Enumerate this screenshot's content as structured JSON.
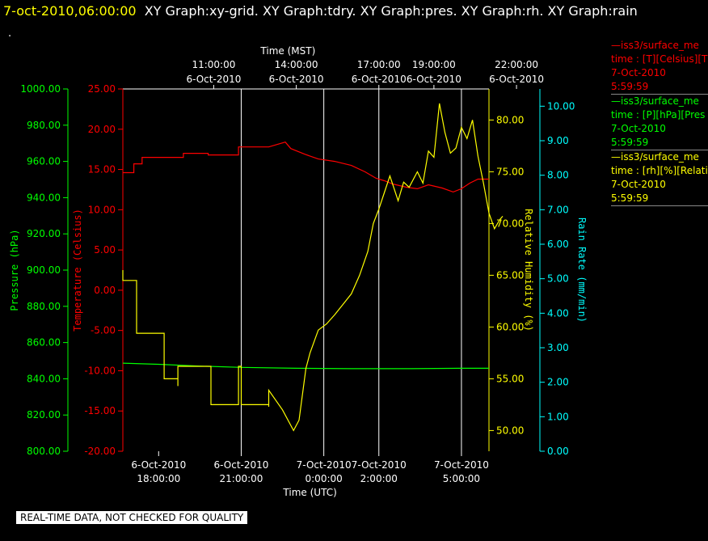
{
  "header": {
    "timestamp": "7-oct-2010,06:00:00",
    "graphs": "XY Graph:xy-grid.  XY Graph:tdry.  XY Graph:pres.  XY Graph:rh.  XY Graph:rain",
    "dot": "."
  },
  "legend": [
    {
      "line1": "—iss3/surface_me",
      "line2": "time : [T][Celsius][T",
      "line3": "7-Oct-2010",
      "line4": "5:59:59",
      "color": "#ff0000"
    },
    {
      "line1": "—iss3/surface_me",
      "line2": "time : [P][hPa][Pres",
      "line3": "7-Oct-2010",
      "line4": "5:59:59",
      "color": "#00ff00"
    },
    {
      "line1": "—iss3/surface_me",
      "line2": "time : [rh][%][Relati",
      "line3": "7-Oct-2010",
      "line4": "5:59:59",
      "color": "#ffff00"
    }
  ],
  "footer": {
    "text": "REAL-TIME DATA, NOT CHECKED FOR QUALITY"
  },
  "chart_data": {
    "type": "line",
    "top_axis": {
      "label": "Time (MST)",
      "ticks": [
        {
          "t": 2,
          "line1": "11:00:00",
          "line2": "6-Oct-2010"
        },
        {
          "t": 5,
          "line1": "14:00:00",
          "line2": "6-Oct-2010"
        },
        {
          "t": 8,
          "line1": "17:00:00",
          "line2": "6-Oct-2010"
        },
        {
          "t": 10,
          "line1": "19:00:00",
          "line2": "6-Oct-2010"
        },
        {
          "t": 13,
          "line1": "22:00:00",
          "line2": "6-Oct-2010"
        }
      ]
    },
    "bottom_axis": {
      "label": "Time (UTC)",
      "ticks": [
        {
          "t": 0,
          "line1": "6-Oct-2010",
          "line2": "18:00:00"
        },
        {
          "t": 3,
          "line1": "6-Oct-2010",
          "line2": "21:00:00"
        },
        {
          "t": 6,
          "line1": "7-Oct-2010",
          "line2": "0:00:00"
        },
        {
          "t": 8,
          "line1": "7-Oct-2010",
          "line2": "2:00:00"
        },
        {
          "t": 11,
          "line1": "7-Oct-2010",
          "line2": "5:00:00"
        }
      ]
    },
    "x_unit": "hours after 6-Oct-2010 18:00 UTC",
    "xlim": [
      -1.3,
      12.0
    ],
    "grid_x": [
      3,
      6,
      8,
      11
    ],
    "axes": [
      {
        "id": "pres",
        "label": "Pressure (hPa)",
        "color": "#00ff00",
        "min": 800,
        "max": 1000,
        "ticks": [
          "800.00",
          "820.00",
          "840.00",
          "860.00",
          "880.00",
          "900.00",
          "920.00",
          "940.00",
          "960.00",
          "980.00",
          "1000.00"
        ]
      },
      {
        "id": "temp",
        "label": "Temperature (Celsius)",
        "color": "#ff0000",
        "min": -20,
        "max": 25,
        "ticks": [
          "-20.00",
          "-15.00",
          "-10.00",
          "-5.00",
          "0.00",
          "5.00",
          "10.00",
          "15.00",
          "20.00",
          "25.00"
        ]
      },
      {
        "id": "rh",
        "label": "Relative Humidity (%)",
        "color": "#ffff00",
        "min": 48,
        "max": 83,
        "ticks": [
          "50.00",
          "55.00",
          "60.00",
          "65.00",
          "70.00",
          "75.00",
          "80.00"
        ]
      },
      {
        "id": "rain",
        "label": "Rain Rate (mm/min)",
        "color": "#00ffff",
        "min": 0,
        "max": 10.5,
        "ticks": [
          "0.00",
          "1.00",
          "2.00",
          "3.00",
          "4.00",
          "5.00",
          "6.00",
          "7.00",
          "8.00",
          "9.00",
          "10.00"
        ]
      }
    ],
    "series": [
      {
        "name": "—iss3/surface_me",
        "axis": "temp",
        "color": "#ff0000",
        "points": [
          [
            -1.3,
            14.6
          ],
          [
            -0.9,
            14.6
          ],
          [
            -0.9,
            15.7
          ],
          [
            -0.6,
            15.7
          ],
          [
            -0.6,
            16.5
          ],
          [
            0.9,
            16.5
          ],
          [
            0.9,
            17.0
          ],
          [
            1.8,
            17.0
          ],
          [
            1.8,
            16.8
          ],
          [
            2.9,
            16.8
          ],
          [
            2.9,
            17.8
          ],
          [
            4.0,
            17.8
          ],
          [
            4.3,
            18.1
          ],
          [
            4.6,
            18.4
          ],
          [
            4.8,
            17.6
          ],
          [
            5.3,
            16.9
          ],
          [
            5.8,
            16.3
          ],
          [
            6.4,
            16.0
          ],
          [
            7.0,
            15.5
          ],
          [
            7.5,
            14.7
          ],
          [
            7.9,
            13.9
          ],
          [
            8.2,
            13.6
          ],
          [
            8.5,
            13.2
          ],
          [
            9.0,
            12.8
          ],
          [
            9.4,
            12.6
          ],
          [
            9.8,
            13.1
          ],
          [
            10.3,
            12.7
          ],
          [
            10.7,
            12.2
          ],
          [
            11.0,
            12.6
          ],
          [
            11.3,
            13.3
          ],
          [
            11.6,
            13.8
          ],
          [
            12.0,
            13.8
          ]
        ]
      },
      {
        "name": "—iss3/surface_me",
        "axis": "pres",
        "color": "#00ff00",
        "points": [
          [
            -1.3,
            848.6
          ],
          [
            0,
            848.0
          ],
          [
            1.5,
            847.0
          ],
          [
            3,
            846.3
          ],
          [
            5,
            845.8
          ],
          [
            7,
            845.6
          ],
          [
            9,
            845.6
          ],
          [
            11,
            845.8
          ],
          [
            12.0,
            845.8
          ]
        ]
      },
      {
        "name": "—iss3/surface_me",
        "axis": "rh",
        "color": "#ffff00",
        "points": [
          [
            -1.3,
            65.5
          ],
          [
            -1.3,
            64.5
          ],
          [
            -0.8,
            64.5
          ],
          [
            -0.8,
            59.4
          ],
          [
            0.2,
            59.4
          ],
          [
            0.2,
            57.5
          ],
          [
            0.2,
            55.0
          ],
          [
            0.7,
            55.0
          ],
          [
            0.7,
            54.3
          ],
          [
            0.7,
            56.2
          ],
          [
            1.9,
            56.2
          ],
          [
            1.9,
            52.5
          ],
          [
            2.9,
            52.5
          ],
          [
            2.9,
            56.2
          ],
          [
            3.0,
            56.2
          ],
          [
            3.0,
            52.5
          ],
          [
            4.0,
            52.5
          ],
          [
            4.0,
            52.3
          ],
          [
            4.0,
            53.9
          ],
          [
            4.5,
            52.0
          ],
          [
            4.9,
            50.0
          ],
          [
            5.1,
            51.0
          ],
          [
            5.35,
            56.0
          ],
          [
            5.5,
            57.5
          ],
          [
            5.8,
            59.7
          ],
          [
            6.1,
            60.3
          ],
          [
            6.4,
            61.2
          ],
          [
            6.7,
            62.2
          ],
          [
            7.0,
            63.2
          ],
          [
            7.3,
            65.0
          ],
          [
            7.6,
            67.3
          ],
          [
            7.8,
            70.0
          ],
          [
            8.0,
            71.4
          ],
          [
            8.2,
            73.0
          ],
          [
            8.4,
            74.6
          ],
          [
            8.7,
            72.2
          ],
          [
            8.9,
            74.0
          ],
          [
            9.1,
            73.5
          ],
          [
            9.4,
            75.0
          ],
          [
            9.6,
            73.9
          ],
          [
            9.8,
            77.0
          ],
          [
            10.0,
            76.4
          ],
          [
            10.2,
            81.6
          ],
          [
            10.4,
            78.8
          ],
          [
            10.6,
            76.8
          ],
          [
            10.8,
            77.3
          ],
          [
            11.0,
            79.3
          ],
          [
            11.2,
            78.2
          ],
          [
            11.4,
            80.0
          ],
          [
            11.6,
            76.5
          ],
          [
            11.8,
            73.9
          ],
          [
            12.0,
            71.0
          ],
          [
            12.2,
            69.5
          ],
          [
            12.4,
            70.4
          ],
          [
            12.5,
            70.7
          ]
        ]
      }
    ]
  }
}
